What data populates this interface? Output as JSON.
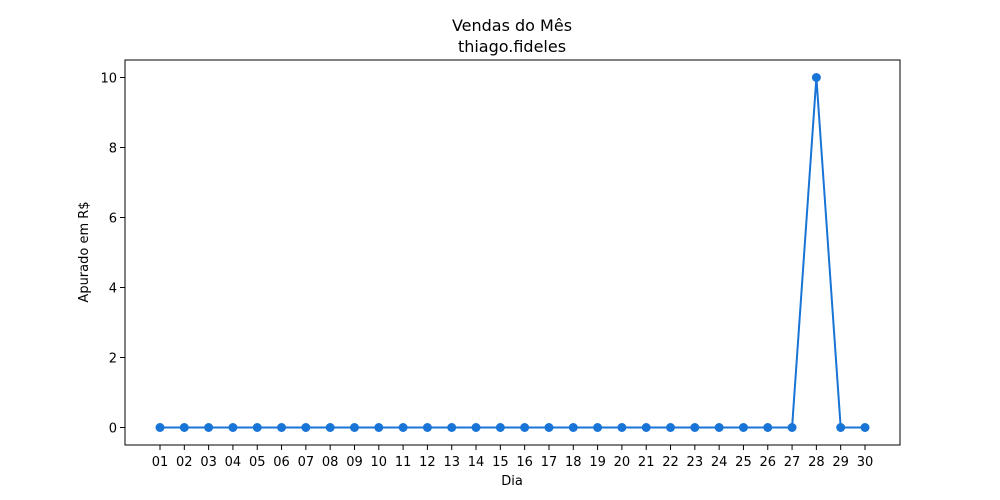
{
  "chart_data": {
    "type": "line",
    "title": "Vendas do Mês",
    "subtitle": "thiago.fideles",
    "xlabel": "Dia",
    "ylabel": "Apurado em R$",
    "categories": [
      "01",
      "02",
      "03",
      "04",
      "05",
      "06",
      "07",
      "08",
      "09",
      "10",
      "11",
      "12",
      "13",
      "14",
      "15",
      "16",
      "17",
      "18",
      "19",
      "20",
      "21",
      "22",
      "23",
      "24",
      "25",
      "26",
      "27",
      "28",
      "29",
      "30"
    ],
    "series": [
      {
        "values": [
          0,
          0,
          0,
          0,
          0,
          0,
          0,
          0,
          0,
          0,
          0,
          0,
          0,
          0,
          0,
          0,
          0,
          0,
          0,
          0,
          0,
          0,
          0,
          0,
          0,
          0,
          0,
          10,
          0,
          0
        ],
        "color": "#1874d6",
        "marker": "circle"
      }
    ],
    "yticks": [
      0,
      2,
      4,
      6,
      8,
      10
    ],
    "ylim": [
      -0.5,
      10.5
    ],
    "grid": false,
    "legend": "none"
  }
}
